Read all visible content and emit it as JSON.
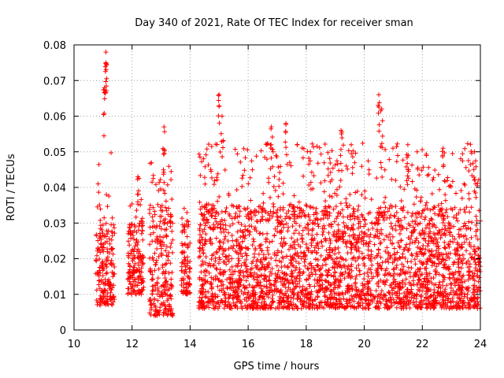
{
  "chart_data": {
    "type": "scatter",
    "title": "Day 340 of 2021, Rate Of TEC Index for receiver sman",
    "xlabel": "GPS time / hours",
    "ylabel": "ROTI / TECUs",
    "xlim": [
      10,
      24
    ],
    "ylim": [
      0,
      0.08
    ],
    "x_ticks": [
      10,
      12,
      14,
      16,
      18,
      20,
      22,
      24
    ],
    "x_tick_labels": [
      "10",
      "12",
      "14",
      "16",
      "18",
      "20",
      "22",
      "24"
    ],
    "y_ticks": [
      0,
      0.01,
      0.02,
      0.03,
      0.04,
      0.05,
      0.06,
      0.07,
      0.08
    ],
    "y_tick_labels": [
      "0",
      "0.01",
      "0.02",
      "0.03",
      "0.04",
      "0.05",
      "0.06",
      "0.07",
      "0.08"
    ],
    "grid": true,
    "marker": "+",
    "color": "#ff0000",
    "series": [
      {
        "name": "ROTI",
        "clusters": [
          {
            "x_start": 10.75,
            "x_end": 11.4,
            "y_typical_min": 0.007,
            "y_typical_max": 0.03,
            "y_peak": 0.078
          },
          {
            "x_start": 11.85,
            "x_end": 12.4,
            "y_typical_min": 0.01,
            "y_typical_max": 0.03,
            "y_peak": 0.043
          },
          {
            "x_start": 12.6,
            "x_end": 13.4,
            "y_typical_min": 0.004,
            "y_typical_max": 0.035,
            "y_peak": 0.057
          },
          {
            "x_start": 13.7,
            "x_end": 14.0,
            "y_typical_min": 0.01,
            "y_typical_max": 0.03,
            "y_peak": 0.038
          },
          {
            "x_start": 14.3,
            "x_end": 24.0,
            "y_typical_min": 0.006,
            "y_typical_max": 0.035,
            "y_peak": 0.067
          }
        ],
        "notable_peaks": [
          {
            "x": 11.1,
            "y": 0.078
          },
          {
            "x": 11.1,
            "y": 0.075
          },
          {
            "x": 11.05,
            "y": 0.068
          },
          {
            "x": 12.2,
            "y": 0.043
          },
          {
            "x": 13.1,
            "y": 0.057
          },
          {
            "x": 15.0,
            "y": 0.066
          },
          {
            "x": 15.1,
            "y": 0.06
          },
          {
            "x": 16.8,
            "y": 0.057
          },
          {
            "x": 17.3,
            "y": 0.058
          },
          {
            "x": 19.2,
            "y": 0.056
          },
          {
            "x": 20.5,
            "y": 0.066
          },
          {
            "x": 20.6,
            "y": 0.062
          },
          {
            "x": 21.5,
            "y": 0.052
          },
          {
            "x": 23.8,
            "y": 0.05
          }
        ]
      }
    ]
  }
}
